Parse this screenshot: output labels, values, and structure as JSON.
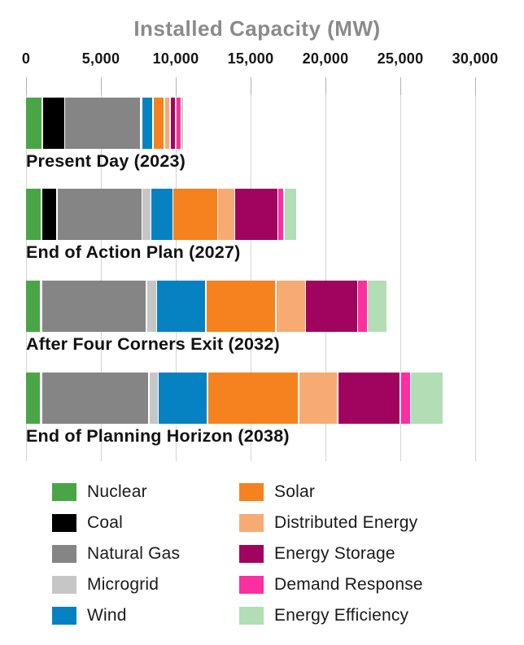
{
  "title": "Installed Capacity (MW)",
  "axis": {
    "tick_labels": [
      "0",
      "5,000",
      "10,000",
      "15,000",
      "20,000",
      "25,000",
      "30,000"
    ]
  },
  "chart_data": {
    "type": "bar",
    "orientation": "horizontal",
    "stacked": true,
    "title": "Installed Capacity (MW)",
    "xlabel": "Installed Capacity (MW)",
    "ylabel": "",
    "xlim": [
      0,
      30000
    ],
    "x_ticks": [
      0,
      5000,
      10000,
      15000,
      20000,
      25000,
      30000
    ],
    "grid": "vertical",
    "legend_position": "bottom",
    "categories": [
      "Present Day (2023)",
      "End of Action Plan (2027)",
      "After Four Corners Exit (2032)",
      "End of Planning Horizon (2038)"
    ],
    "series": [
      {
        "name": "Nuclear",
        "color": "#4aa546",
        "values": [
          1050,
          1000,
          950,
          900
        ]
      },
      {
        "name": "Coal",
        "color": "#000000",
        "values": [
          1400,
          950,
          0,
          0
        ]
      },
      {
        "name": "Natural Gas",
        "color": "#858585",
        "values": [
          5000,
          5600,
          6900,
          7100
        ]
      },
      {
        "name": "Microgrid",
        "color": "#c6c6c6",
        "values": [
          0,
          500,
          600,
          550
        ]
      },
      {
        "name": "Wind",
        "color": "#0682c3",
        "values": [
          650,
          1400,
          3200,
          3200
        ]
      },
      {
        "name": "Solar",
        "color": "#f5821f",
        "values": [
          700,
          2900,
          4600,
          6000
        ]
      },
      {
        "name": "Distributed Energy",
        "color": "#f7ab73",
        "values": [
          300,
          1050,
          1900,
          2550
        ]
      },
      {
        "name": "Energy Storage",
        "color": "#a0045e",
        "values": [
          300,
          2800,
          3400,
          4100
        ]
      },
      {
        "name": "Demand Response",
        "color": "#fb2fa0",
        "values": [
          250,
          350,
          550,
          600
        ]
      },
      {
        "name": "Energy Efficiency",
        "color": "#b3ddb5",
        "values": [
          100,
          750,
          1250,
          2100
        ]
      }
    ],
    "totals": [
      9750,
      17300,
      23350,
      27100
    ]
  },
  "legend": {
    "order": "column-major",
    "items": [
      "Nuclear",
      "Coal",
      "Natural Gas",
      "Microgrid",
      "Wind",
      "Solar",
      "Distributed Energy",
      "Energy Storage",
      "Demand Response",
      "Energy Efficiency"
    ]
  }
}
